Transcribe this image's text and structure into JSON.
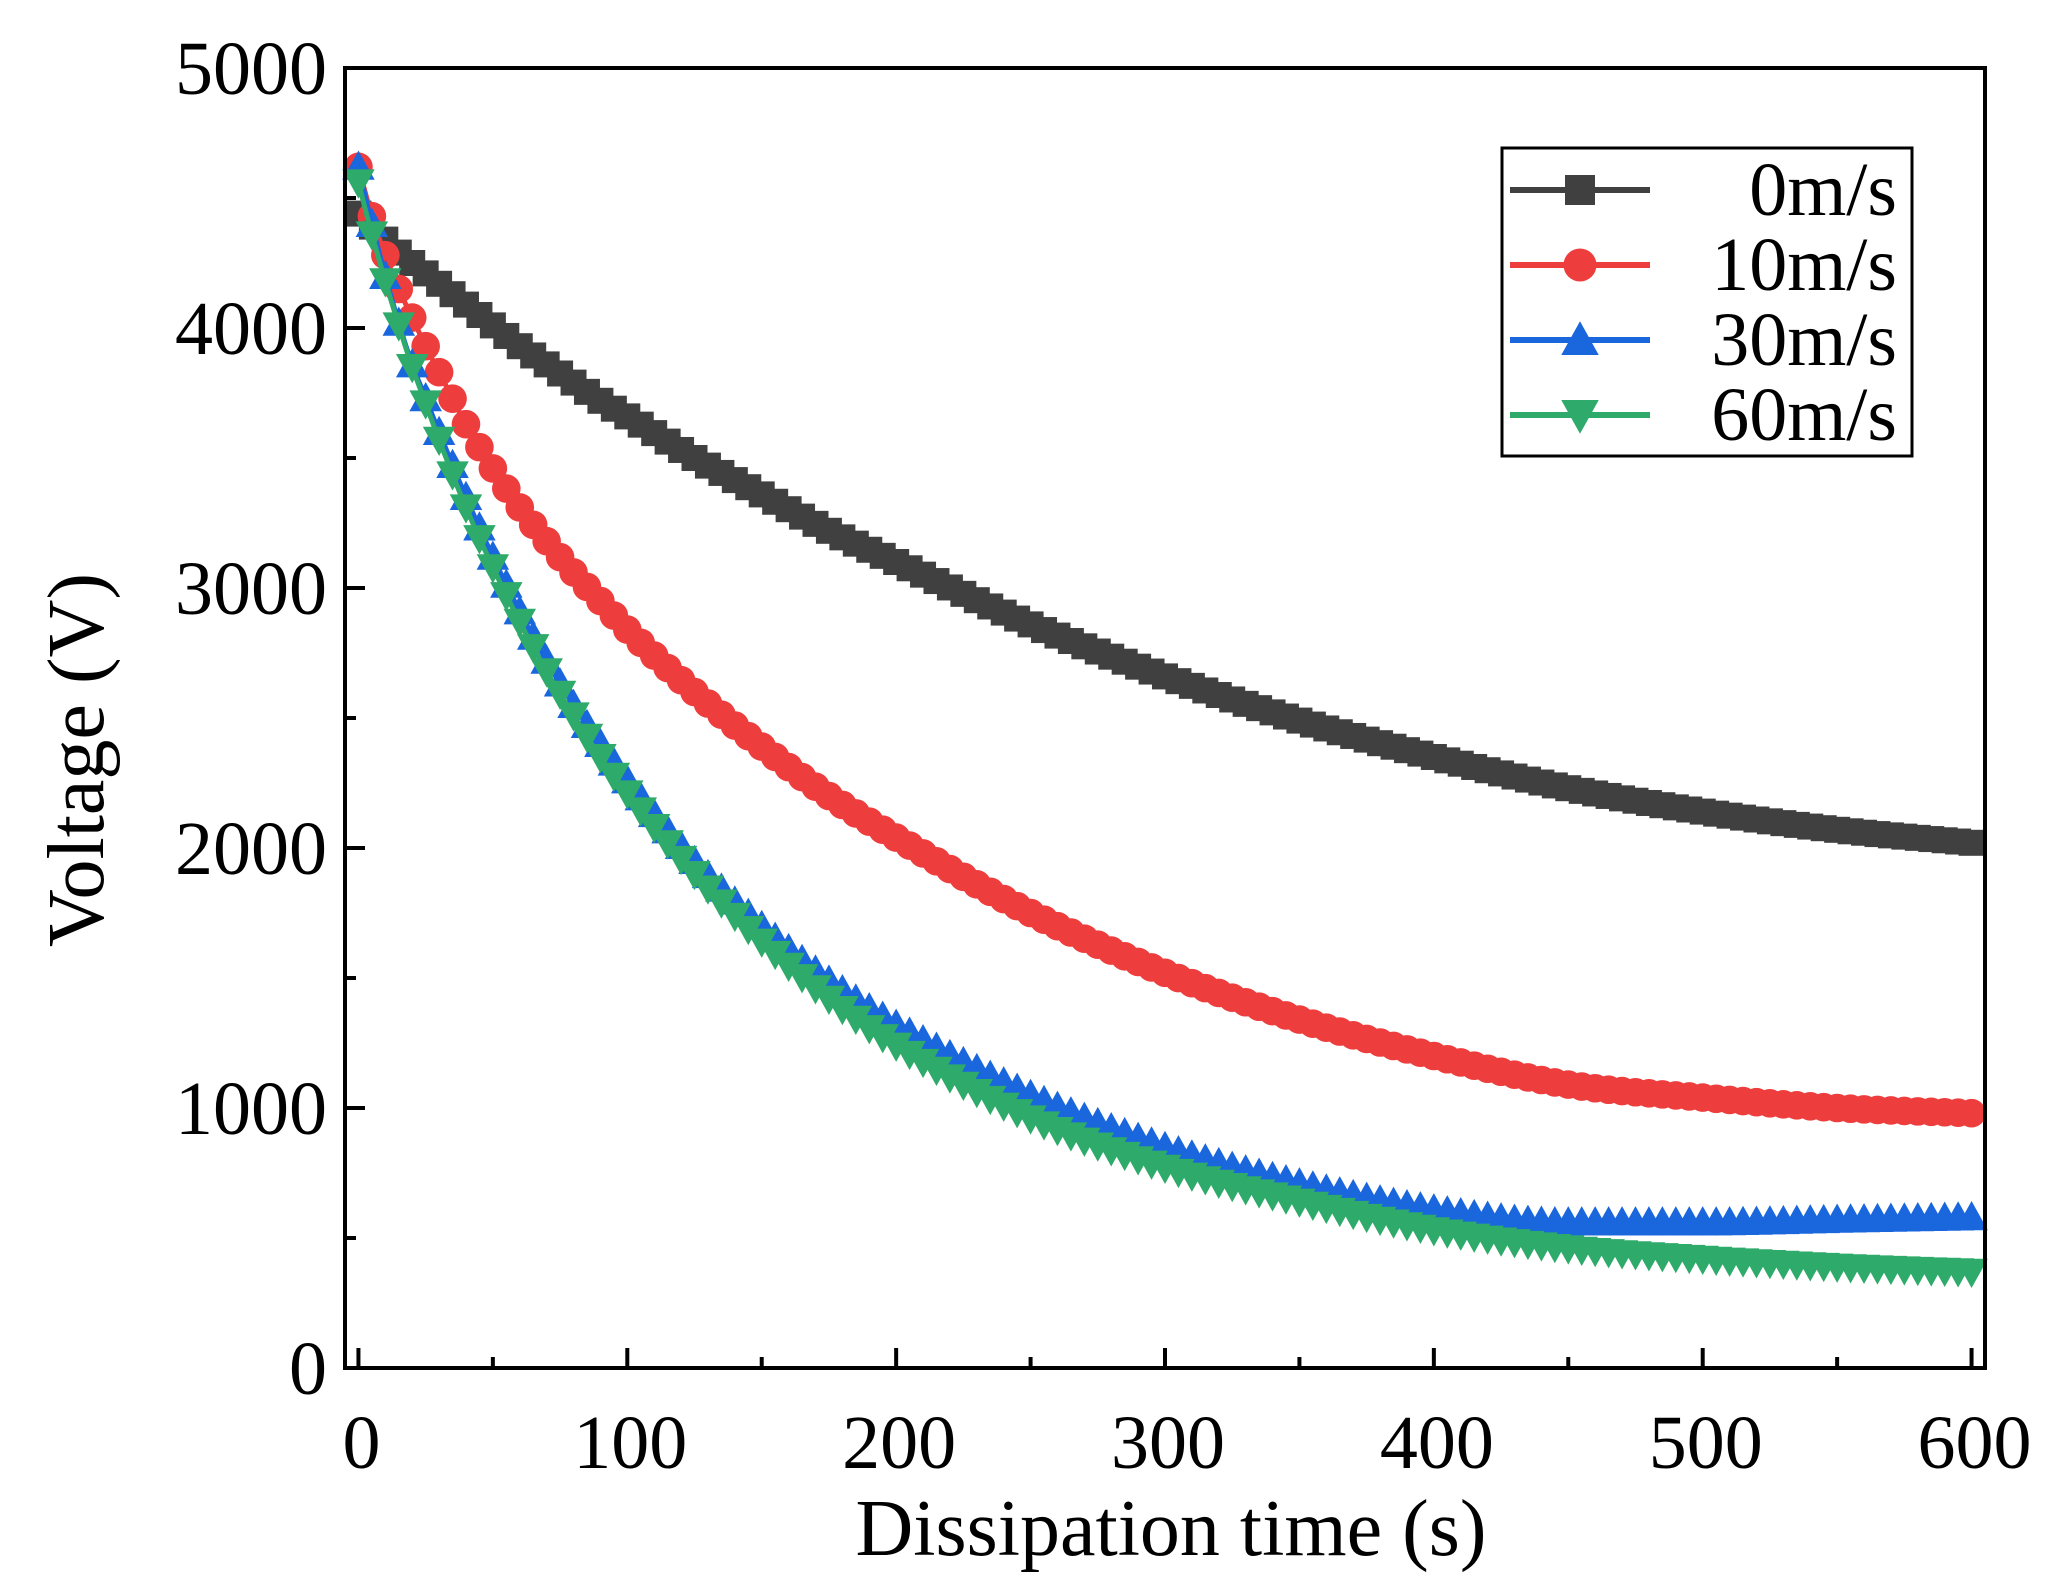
{
  "chart_data": {
    "type": "line",
    "title": "",
    "xlabel": "Dissipation time (s)",
    "ylabel": "Voltage (V)",
    "xlim": [
      -5,
      605
    ],
    "ylim": [
      0,
      5000
    ],
    "xticks": [
      0,
      100,
      200,
      300,
      400,
      500,
      600
    ],
    "xtick_labels": [
      "0",
      "100",
      "200",
      "300",
      "400",
      "500",
      "600"
    ],
    "yticks": [
      0,
      1000,
      2000,
      3000,
      4000,
      5000
    ],
    "ytick_labels": [
      "0",
      "1000",
      "2000",
      "3000",
      "4000",
      "5000"
    ],
    "grid": false,
    "legend_position": "top-right",
    "sample_times": [
      0,
      5,
      10,
      15,
      20,
      25,
      30,
      40,
      50,
      60,
      70,
      80,
      90,
      100,
      125,
      150,
      175,
      200,
      250,
      300,
      350,
      400,
      450,
      500,
      550,
      600
    ],
    "series": [
      {
        "name": "0m/s",
        "color": "#404040",
        "marker": "square",
        "values": [
          4440,
          4390,
          4340,
          4290,
          4250,
          4210,
          4170,
          4090,
          4010,
          3930,
          3860,
          3790,
          3720,
          3660,
          3500,
          3360,
          3220,
          3100,
          2860,
          2660,
          2490,
          2350,
          2230,
          2140,
          2070,
          2020
        ]
      },
      {
        "name": "10m/s",
        "color": "#ee3d3d",
        "marker": "circle",
        "values": [
          4620,
          4430,
          4280,
          4150,
          4040,
          3930,
          3830,
          3630,
          3460,
          3310,
          3180,
          3060,
          2950,
          2840,
          2600,
          2390,
          2200,
          2040,
          1750,
          1520,
          1340,
          1200,
          1090,
          1040,
          1000,
          980
        ]
      },
      {
        "name": "30m/s",
        "color": "#1a66dd",
        "marker": "triangle-up",
        "values": [
          4620,
          4400,
          4200,
          4020,
          3860,
          3730,
          3600,
          3350,
          3120,
          2910,
          2720,
          2550,
          2400,
          2260,
          1950,
          1700,
          1490,
          1320,
          1050,
          850,
          710,
          610,
          560,
          560,
          570,
          580
        ]
      },
      {
        "name": "60m/s",
        "color": "#2eaa6a",
        "marker": "triangle-down",
        "values": [
          4560,
          4360,
          4180,
          4010,
          3850,
          3710,
          3570,
          3310,
          3080,
          2870,
          2680,
          2510,
          2350,
          2210,
          1900,
          1640,
          1420,
          1240,
          960,
          770,
          640,
          530,
          460,
          420,
          390,
          370
        ]
      }
    ]
  }
}
